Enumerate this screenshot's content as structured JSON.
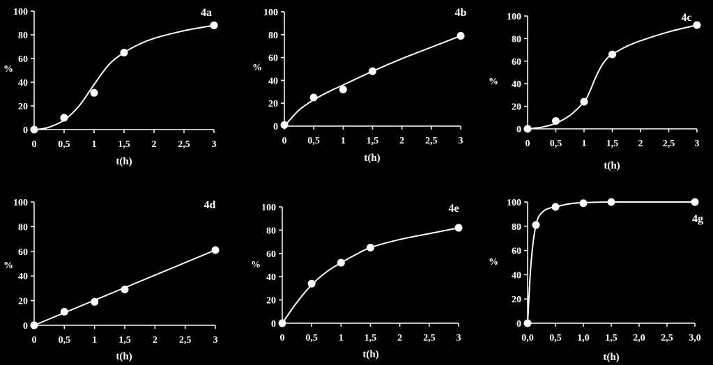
{
  "colors": {
    "background": "#000000",
    "foreground": "#ffffff"
  },
  "chart_data": [
    {
      "type": "scatter",
      "title": "4a",
      "xlabel": "t(h)",
      "ylabel": "%",
      "xlim": [
        0,
        3
      ],
      "ylim": [
        0,
        100
      ],
      "xticks": [
        0,
        0.5,
        1,
        1.5,
        2,
        2.5,
        3
      ],
      "xtick_labels": [
        "0",
        "0,5",
        "1",
        "1,5",
        "2",
        "2,5",
        "3"
      ],
      "yticks": [
        0,
        20,
        40,
        60,
        80,
        100
      ],
      "ytick_labels": [
        "0",
        "20",
        "40",
        "60",
        "80",
        "100"
      ],
      "series": [
        {
          "x": [
            0,
            0.5,
            1,
            1.5,
            3
          ],
          "y": [
            0,
            10,
            31,
            65,
            88
          ]
        }
      ],
      "fit_curve": {
        "x": [
          0,
          0.1,
          0.25,
          0.5,
          0.75,
          1,
          1.25,
          1.5,
          1.75,
          2,
          2.5,
          3
        ],
        "y": [
          0,
          0.5,
          2,
          8,
          20,
          38,
          55,
          65,
          72,
          77,
          83.5,
          88
        ]
      }
    },
    {
      "type": "scatter",
      "title": "4b",
      "xlabel": "t(h)",
      "ylabel": "%",
      "xlim": [
        0,
        3
      ],
      "ylim": [
        0,
        100
      ],
      "xticks": [
        0,
        0.5,
        1,
        1.5,
        2,
        2.5,
        3
      ],
      "xtick_labels": [
        "0",
        "0,5",
        "1",
        "1,5",
        "2",
        "2,5",
        "3"
      ],
      "yticks": [
        0,
        20,
        40,
        60,
        80,
        100
      ],
      "ytick_labels": [
        "0",
        "20",
        "40",
        "60",
        "80",
        "100"
      ],
      "series": [
        {
          "x": [
            0,
            0.5,
            1,
            1.5,
            3
          ],
          "y": [
            1,
            25,
            32,
            48,
            79
          ]
        }
      ],
      "fit_curve": {
        "x": [
          0,
          0.25,
          0.5,
          0.75,
          1,
          1.5,
          2,
          2.5,
          3
        ],
        "y": [
          0,
          14,
          23,
          30,
          36,
          48,
          59,
          69,
          79
        ]
      }
    },
    {
      "type": "scatter",
      "title": "4c",
      "xlabel": "t(h)",
      "ylabel": "%",
      "xlim": [
        0,
        3
      ],
      "ylim": [
        0,
        100
      ],
      "xticks": [
        0,
        0.5,
        1,
        1.5,
        2,
        2.5,
        3
      ],
      "xtick_labels": [
        "0",
        "0,5",
        "1",
        "1,5",
        "2",
        "2,5",
        "3"
      ],
      "yticks": [
        0,
        20,
        40,
        60,
        80,
        100
      ],
      "ytick_labels": [
        "0",
        "20",
        "40",
        "60",
        "80",
        "100"
      ],
      "series": [
        {
          "x": [
            0,
            0.5,
            1,
            1.5,
            3
          ],
          "y": [
            0,
            7,
            24,
            66,
            92
          ]
        }
      ],
      "fit_curve": {
        "x": [
          0,
          0.25,
          0.5,
          0.75,
          1,
          1.1,
          1.2,
          1.3,
          1.4,
          1.5,
          1.75,
          2,
          2.5,
          3
        ],
        "y": [
          0,
          1.5,
          5,
          12,
          24,
          33,
          45,
          55,
          62,
          66,
          73,
          78,
          86,
          92
        ]
      }
    },
    {
      "type": "scatter",
      "title": "4d",
      "xlabel": "t(h)",
      "ylabel": "%",
      "xlim": [
        0,
        3
      ],
      "ylim": [
        0,
        100
      ],
      "xticks": [
        0,
        0.5,
        1,
        1.5,
        2,
        2.5,
        3
      ],
      "xtick_labels": [
        "0",
        "0,5",
        "1",
        "1,5",
        "2",
        "2,5",
        "3"
      ],
      "yticks": [
        0,
        20,
        40,
        60,
        80,
        100
      ],
      "ytick_labels": [
        "0",
        "20",
        "40",
        "60",
        "80",
        "100"
      ],
      "series": [
        {
          "x": [
            0,
            0.5,
            1,
            1.5,
            3
          ],
          "y": [
            0,
            11,
            19,
            29,
            61
          ]
        }
      ],
      "fit_curve": {
        "x": [
          0,
          3
        ],
        "y": [
          0,
          61
        ]
      }
    },
    {
      "type": "scatter",
      "title": "4e",
      "xlabel": "t(h)",
      "ylabel": "%",
      "xlim": [
        0,
        3
      ],
      "ylim": [
        0,
        100
      ],
      "xticks": [
        0,
        0.5,
        1,
        1.5,
        2,
        2.5,
        3
      ],
      "xtick_labels": [
        "0",
        "0,5",
        "1",
        "1,5",
        "2",
        "2,5",
        "3"
      ],
      "yticks": [
        0,
        20,
        40,
        60,
        80,
        100
      ],
      "ytick_labels": [
        "0",
        "20",
        "40",
        "60",
        "80",
        "100"
      ],
      "series": [
        {
          "x": [
            0,
            0.5,
            1,
            1.5,
            3
          ],
          "y": [
            0,
            34,
            52,
            65,
            82
          ]
        }
      ],
      "fit_curve": {
        "x": [
          0,
          0.25,
          0.5,
          0.75,
          1,
          1.25,
          1.5,
          2,
          2.5,
          3
        ],
        "y": [
          0,
          18,
          33,
          44,
          52,
          59,
          65,
          72,
          77,
          82
        ]
      }
    },
    {
      "type": "scatter",
      "title": "4g",
      "xlabel": "t(h)",
      "ylabel": "%",
      "xlim": [
        0,
        3
      ],
      "ylim": [
        0,
        100
      ],
      "xticks": [
        0,
        0.5,
        1,
        1.5,
        2,
        2.5,
        3
      ],
      "xtick_labels": [
        "0,0",
        "0,5",
        "1,0",
        "1,5",
        "2,0",
        "2,5",
        "3,0"
      ],
      "yticks": [
        0,
        20,
        40,
        60,
        80,
        100
      ],
      "ytick_labels": [
        "0",
        "20",
        "40",
        "60",
        "80",
        "100"
      ],
      "series": [
        {
          "x": [
            0,
            0.15,
            0.5,
            1,
            1.5,
            3
          ],
          "y": [
            0,
            81,
            96,
            99,
            100,
            100
          ]
        }
      ],
      "fit_curve": {
        "x": [
          0,
          0.05,
          0.1,
          0.15,
          0.2,
          0.3,
          0.4,
          0.5,
          0.75,
          1,
          1.5,
          2,
          3
        ],
        "y": [
          0,
          42,
          67,
          81,
          88,
          93,
          95,
          96,
          98.5,
          99.5,
          100,
          100,
          100
        ]
      }
    }
  ]
}
